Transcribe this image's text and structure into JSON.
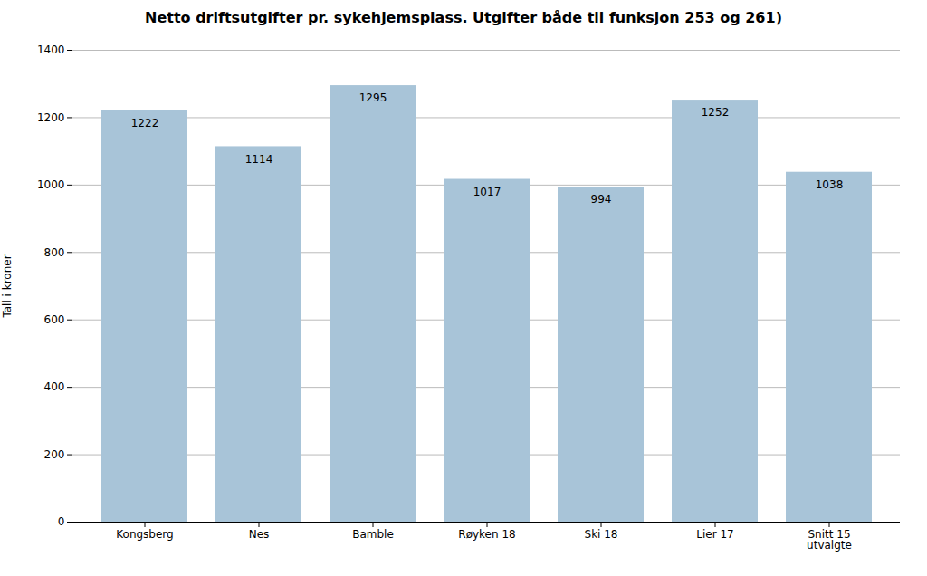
{
  "chart_data": {
    "type": "bar",
    "title": "Netto driftsutgifter pr. sykehjemsplass. Utgifter både til funksjon 253 og 261)",
    "categories": [
      "Kongsberg",
      "Nes",
      "Bamble",
      "Røyken 18",
      "Ski 18",
      "Lier 17",
      "Snitt 15\nutvalgte"
    ],
    "values": [
      1222,
      1114,
      1295,
      1017,
      994,
      1252,
      1038
    ],
    "color": "#a8c4d8",
    "ylabel": "Tall i kroner",
    "ylim": [
      0,
      1400
    ],
    "yticks": [
      0,
      200,
      400,
      600,
      800,
      1000,
      1200,
      1400
    ],
    "grid": true,
    "data_labels": true
  }
}
